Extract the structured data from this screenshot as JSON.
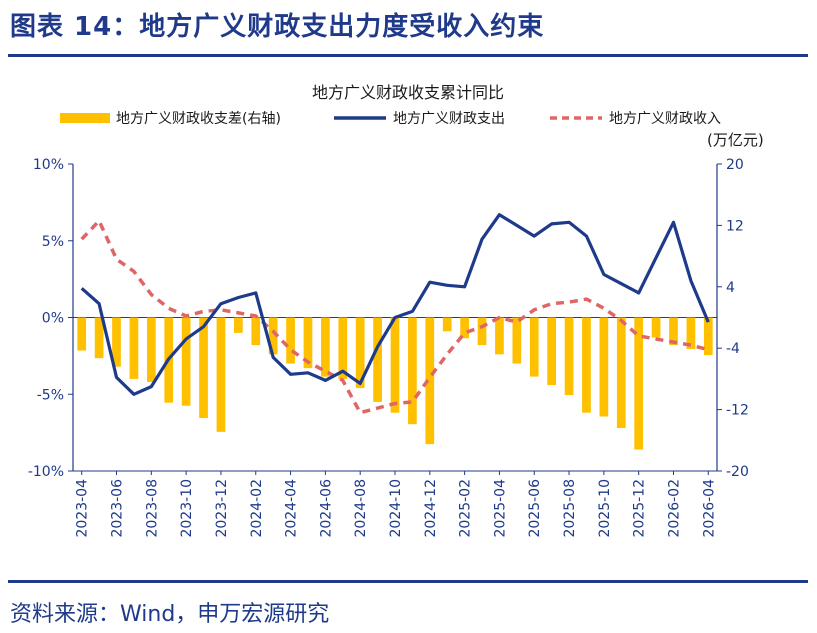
{
  "figure": {
    "title": "图表 14：地方广义财政支出力度受收入约束",
    "source": "资料来源：Wind，申万宏源研究"
  },
  "colors": {
    "bar": "#FFC000",
    "expense_line": "#1F3A8A",
    "revenue_line": "#E06666",
    "axis": "#1F3A8A",
    "text": "#1F3A8A"
  },
  "chart_data": {
    "type": "bar",
    "title": "地方广义财政收支累计同比",
    "right_axis_unit": "(万亿元)",
    "x": [
      "2023-04",
      "2023-05",
      "2023-06",
      "2023-07",
      "2023-08",
      "2023-09",
      "2023-10",
      "2023-11",
      "2023-12",
      "2024-01",
      "2024-02",
      "2024-03",
      "2024-04",
      "2024-05",
      "2024-06",
      "2024-07",
      "2024-08",
      "2024-09",
      "2024-10",
      "2024-11",
      "2024-12",
      "2025-01",
      "2025-02",
      "2025-03",
      "2025-04",
      "2025-05",
      "2025-06",
      "2025-07",
      "2025-08",
      "2025-09",
      "2025-10",
      "2025-11",
      "2025-12",
      "2026-01",
      "2026-02",
      "2026-03",
      "2026-04"
    ],
    "x_tick_labels": [
      "2023-04",
      "2023-06",
      "2023-08",
      "2023-10",
      "2023-12",
      "2024-02",
      "2024-04",
      "2024-06",
      "2024-08",
      "2024-10",
      "2024-12",
      "2025-02",
      "2025-04",
      "2025-06",
      "2025-08",
      "2025-10",
      "2025-12",
      "2026-02",
      "2026-04"
    ],
    "left_axis": {
      "ylim": [
        -10,
        10
      ],
      "ticks": [
        "10%",
        "5%",
        "0%",
        "-5%",
        "-10%"
      ],
      "values": [
        10,
        5,
        0,
        -5,
        -10
      ]
    },
    "right_axis": {
      "ylim": [
        -20,
        20
      ],
      "ticks": [
        "20",
        "12",
        "4",
        "-4",
        "-12",
        "-20"
      ],
      "values": [
        20,
        12,
        4,
        -4,
        -12,
        -20
      ]
    },
    "series": [
      {
        "name": "地方广义财政收支差(右轴)",
        "kind": "bar",
        "axis": "right",
        "values": [
          -4.3,
          -5.3,
          -6.4,
          -8.0,
          -8.4,
          -11.1,
          -11.5,
          -13.1,
          -14.9,
          -2.0,
          -3.6,
          -4.8,
          -6.0,
          -6.6,
          -7.7,
          -8.0,
          -9.2,
          -11.0,
          -12.4,
          -13.9,
          -16.5,
          -1.8,
          -2.7,
          -3.6,
          -4.8,
          -6.0,
          -7.7,
          -8.8,
          -10.1,
          -12.4,
          -12.9,
          -14.4,
          -17.2,
          -2.6,
          -3.6,
          -4.1,
          -4.9
        ]
      },
      {
        "name": "地方广义财政支出",
        "kind": "line",
        "axis": "left",
        "values": [
          1.9,
          0.9,
          -3.9,
          -5.0,
          -4.5,
          -2.7,
          -1.4,
          -0.6,
          0.9,
          1.3,
          1.6,
          -2.6,
          -3.7,
          -3.6,
          -4.1,
          -3.5,
          -4.3,
          -1.9,
          0.0,
          0.4,
          2.3,
          2.1,
          2.0,
          5.1,
          6.7,
          6.0,
          5.3,
          6.1,
          6.2,
          5.3,
          2.8,
          2.2,
          1.6,
          3.9,
          6.2,
          2.4,
          -0.3
        ]
      },
      {
        "name": "地方广义财政收入",
        "kind": "line",
        "dashed": true,
        "axis": "left",
        "values": [
          5.1,
          6.3,
          3.8,
          3.0,
          1.5,
          0.6,
          0.1,
          0.4,
          0.5,
          0.3,
          0.1,
          -0.9,
          -2.1,
          -2.9,
          -3.5,
          -4.1,
          -6.2,
          -5.9,
          -5.6,
          -5.5,
          -3.9,
          -2.4,
          -1.0,
          -0.6,
          0.0,
          -0.3,
          0.5,
          0.9,
          1.0,
          1.2,
          0.6,
          -0.2,
          -1.2,
          -1.4,
          -1.6,
          -1.8,
          -2.1
        ]
      }
    ],
    "legend": {
      "placement": "top"
    },
    "grid": false
  }
}
